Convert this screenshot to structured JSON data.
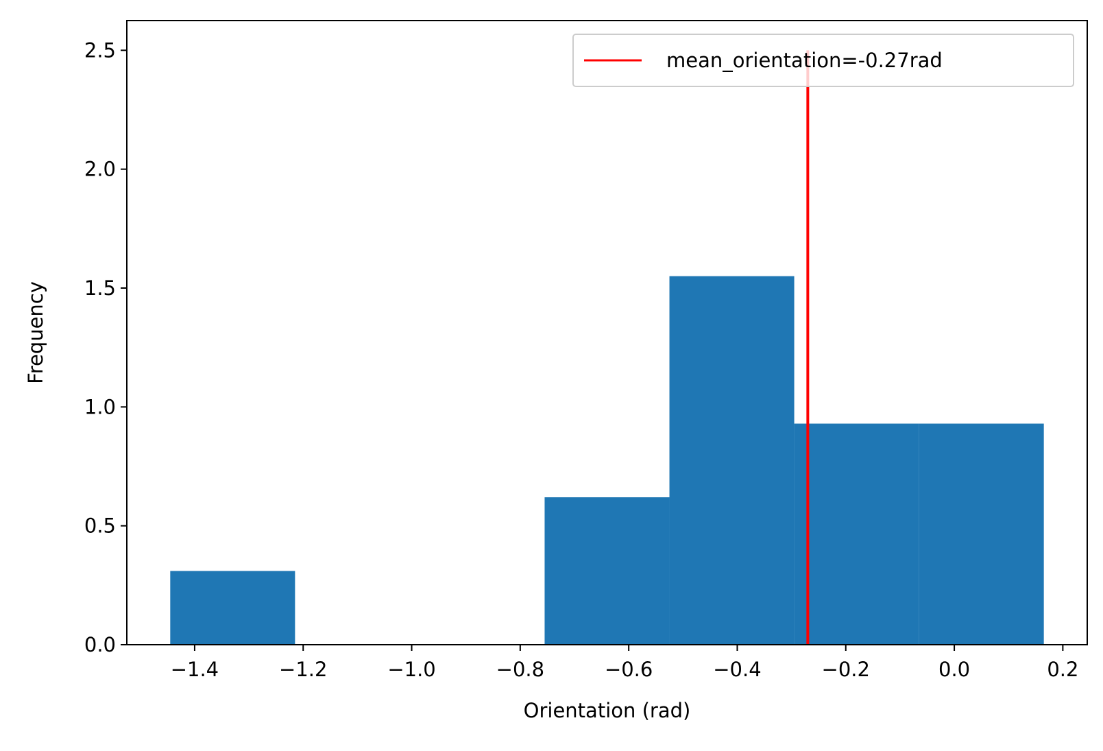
{
  "chart_data": {
    "type": "bar",
    "histogram": true,
    "xlabel": "Orientation (rad)",
    "ylabel": "Frequency",
    "xlim": [
      -1.525,
      0.245
    ],
    "ylim": [
      0,
      2.625
    ],
    "x_ticks": [
      -1.4,
      -1.2,
      -1.0,
      -0.8,
      -0.6,
      -0.4,
      -0.2,
      0.0,
      0.2
    ],
    "x_tick_labels": [
      "−1.4",
      "−1.2",
      "−1.0",
      "−0.8",
      "−0.6",
      "−0.4",
      "−0.2",
      "0.0",
      "0.2"
    ],
    "y_ticks": [
      0.0,
      0.5,
      1.0,
      1.5,
      2.0,
      2.5
    ],
    "y_tick_labels": [
      "0.0",
      "0.5",
      "1.0",
      "1.5",
      "2.0",
      "2.5"
    ],
    "bins": [
      {
        "x0": -1.445,
        "x1": -1.215,
        "value": 0.31
      },
      {
        "x0": -1.215,
        "x1": -0.985,
        "value": 0.0
      },
      {
        "x0": -0.985,
        "x1": -0.755,
        "value": 0.0
      },
      {
        "x0": -0.755,
        "x1": -0.525,
        "value": 0.62
      },
      {
        "x0": -0.525,
        "x1": -0.295,
        "value": 1.55
      },
      {
        "x0": -0.295,
        "x1": -0.065,
        "value": 0.93
      },
      {
        "x0": -0.065,
        "x1": 0.165,
        "value": 0.93
      }
    ],
    "bar_color": "#1f77b4",
    "mean_line": {
      "x": -0.27,
      "y_range": [
        0,
        2.5
      ],
      "color": "#ff0000",
      "label": "mean_orientation=-0.27rad"
    },
    "legend_position": "top-right",
    "grid": false
  }
}
